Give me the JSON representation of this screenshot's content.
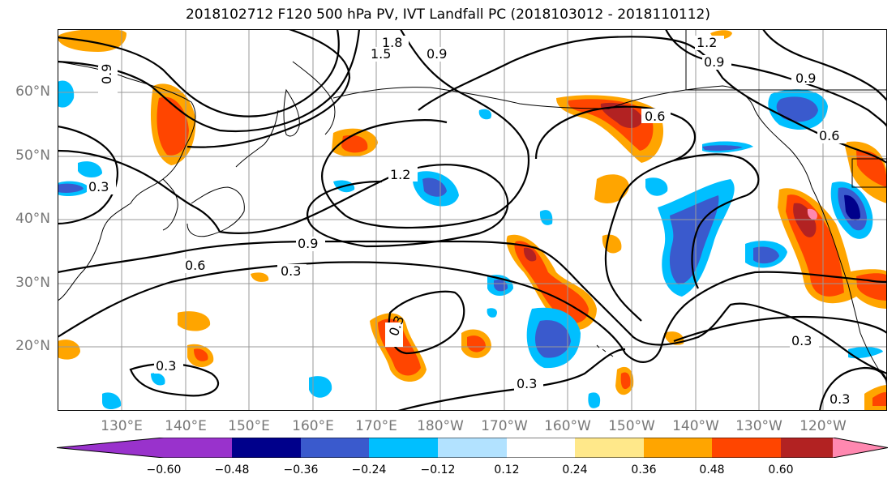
{
  "title": "2018102712 F120 500 hPa PV, IVT Landfall PC (2018103012 - 2018110112)",
  "lat_labels": [
    "60°N",
    "50°N",
    "40°N",
    "30°N",
    "20°N"
  ],
  "lon_labels": [
    "130°E",
    "140°E",
    "150°E",
    "160°E",
    "170°E",
    "180°W",
    "170°W",
    "160°W",
    "150°W",
    "140°W",
    "130°W",
    "120°W"
  ],
  "contour_labels": [
    "1.8",
    "1.5",
    "0.9",
    "1.2",
    "0.9",
    "0.9",
    "0.6",
    "0.9",
    "0.3",
    "0.6",
    "1.2",
    "0.9",
    "0.6",
    "0.3",
    "0.3",
    "0.3",
    "0.3",
    "0.3",
    "0.3"
  ],
  "colorbar": {
    "ticks": [
      "−0.60",
      "−0.48",
      "−0.36",
      "−0.24",
      "−0.12",
      "0.12",
      "0.24",
      "0.36",
      "0.48",
      "0.60"
    ],
    "colors": [
      "#9932cc",
      "#00008b",
      "#3a5acd",
      "#00bfff",
      "#b2e2ff",
      "#ffffff",
      "#ffe88a",
      "#ffa500",
      "#ff4500",
      "#b22222",
      "#ff88b0"
    ]
  },
  "fill_colors": {
    "orange": "#ffa500",
    "red_orange": "#ff4500",
    "dark_red": "#b22222",
    "pink": "#ff88b0",
    "light_yellow": "#ffe88a",
    "sky_blue": "#00bfff",
    "royal_blue": "#3a5acd",
    "navy": "#00008b",
    "pale_blue": "#b2e2ff"
  }
}
